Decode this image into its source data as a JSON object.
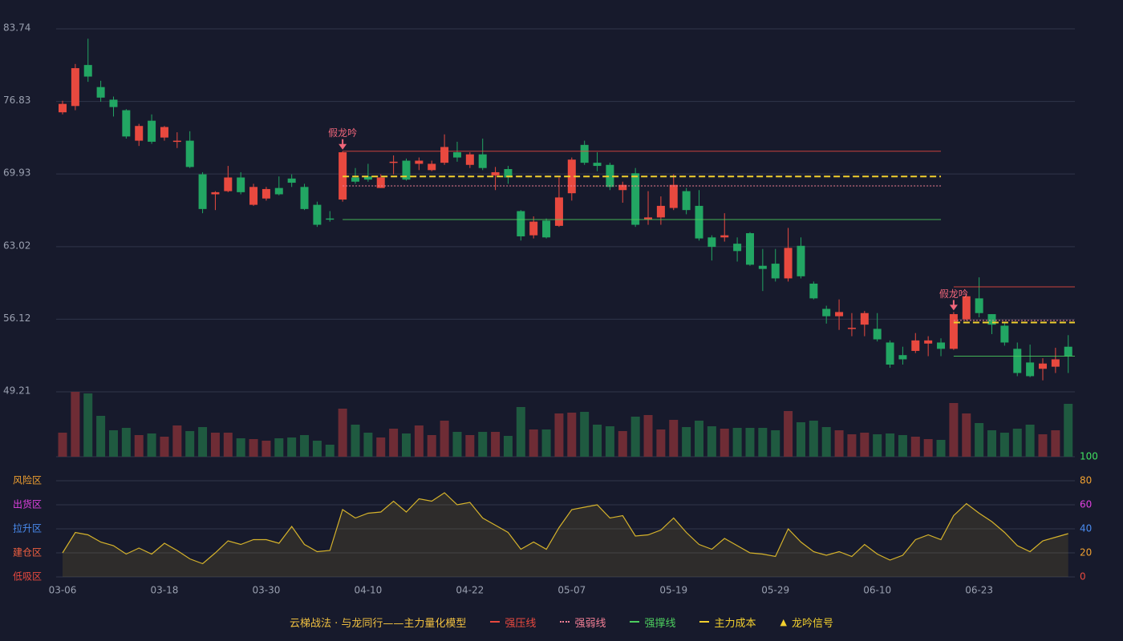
{
  "chart_data": {
    "type": "candlestick",
    "categories": [
      "03-06",
      null,
      null,
      null,
      null,
      null,
      null,
      null,
      "03-18",
      null,
      null,
      null,
      null,
      null,
      null,
      null,
      "03-30",
      null,
      null,
      null,
      null,
      null,
      null,
      null,
      "04-10",
      null,
      null,
      null,
      null,
      null,
      null,
      null,
      "04-22",
      null,
      null,
      null,
      null,
      null,
      null,
      null,
      "05-07",
      null,
      null,
      null,
      null,
      null,
      null,
      null,
      "05-19",
      null,
      null,
      null,
      null,
      null,
      null,
      null,
      "05-29",
      null,
      null,
      null,
      null,
      null,
      null,
      null,
      "06-10",
      null,
      null,
      null,
      null,
      null,
      null,
      null,
      "06-23",
      null,
      null,
      null,
      null,
      null,
      null,
      null
    ],
    "open": [
      75.8,
      76.4,
      80.3,
      78.2,
      77.0,
      76.0,
      73.1,
      75.0,
      73.4,
      73.0,
      73.1,
      69.9,
      68.0,
      68.3,
      69.6,
      67.0,
      67.6,
      68.6,
      69.5,
      68.7,
      67.0,
      65.7,
      67.5,
      69.6,
      69.7,
      68.6,
      71.0,
      71.2,
      70.9,
      70.3,
      71.0,
      72.0,
      70.8,
      71.8,
      69.8,
      70.4,
      66.4,
      64.1,
      65.5,
      65.0,
      68.1,
      72.7,
      71.0,
      70.8,
      68.4,
      70.0,
      65.6,
      65.8,
      66.7,
      68.3,
      66.9,
      63.9,
      63.9,
      63.3,
      64.3,
      61.2,
      61.4,
      60.0,
      63.1,
      59.5,
      57.1,
      56.4,
      55.2,
      55.6,
      55.2,
      53.9,
      52.7,
      53.1,
      53.8,
      53.9,
      53.3,
      56.1,
      58.1,
      56.6,
      55.5,
      53.3,
      52.0,
      51.4,
      51.6,
      53.5
    ],
    "high": [
      76.9,
      80.4,
      82.8,
      78.8,
      77.3,
      76.1,
      74.7,
      75.6,
      74.5,
      73.9,
      74.0,
      70.1,
      68.3,
      70.7,
      70.1,
      69.0,
      68.7,
      69.7,
      69.9,
      69.0,
      67.3,
      66.4,
      72.1,
      70.5,
      70.9,
      69.9,
      71.7,
      71.4,
      71.5,
      71.2,
      73.7,
      73.0,
      72.0,
      73.3,
      70.6,
      70.7,
      66.5,
      65.9,
      65.7,
      69.6,
      71.5,
      73.1,
      72.0,
      71.0,
      69.2,
      70.5,
      68.3,
      67.8,
      69.9,
      68.6,
      68.4,
      64.1,
      66.2,
      63.9,
      64.4,
      62.8,
      62.8,
      64.8,
      63.9,
      59.7,
      57.4,
      58.0,
      56.7,
      56.9,
      56.7,
      54.1,
      53.5,
      54.8,
      54.5,
      54.3,
      56.8,
      58.6,
      60.1,
      56.6,
      55.8,
      53.9,
      53.7,
      52.4,
      53.4,
      54.6
    ],
    "low": [
      75.6,
      76.0,
      78.7,
      76.8,
      75.4,
      73.3,
      72.6,
      72.8,
      73.1,
      72.4,
      70.5,
      66.2,
      66.5,
      68.2,
      68.0,
      66.9,
      67.4,
      67.9,
      68.7,
      66.5,
      64.9,
      65.4,
      67.3,
      69.0,
      69.2,
      68.6,
      69.9,
      69.3,
      70.3,
      70.2,
      70.8,
      71.1,
      70.5,
      70.3,
      68.4,
      69.0,
      63.6,
      63.8,
      63.8,
      64.9,
      67.4,
      70.8,
      70.2,
      68.4,
      67.2,
      64.9,
      65.1,
      65.1,
      66.5,
      66.1,
      63.6,
      61.7,
      63.5,
      61.6,
      61.2,
      58.8,
      59.7,
      59.7,
      60.0,
      58.0,
      55.7,
      55.1,
      54.5,
      54.5,
      54.0,
      51.5,
      51.8,
      52.9,
      52.6,
      52.6,
      53.2,
      56.0,
      56.3,
      54.7,
      53.6,
      50.7,
      50.6,
      50.3,
      51.0,
      51.0
    ],
    "close": [
      76.6,
      80.0,
      79.2,
      77.2,
      76.3,
      73.5,
      74.5,
      73.0,
      74.4,
      73.1,
      70.6,
      66.6,
      68.2,
      69.6,
      68.2,
      68.7,
      68.5,
      68.0,
      69.1,
      66.6,
      65.1,
      65.6,
      72.0,
      69.2,
      69.4,
      69.6,
      71.1,
      69.4,
      71.2,
      70.9,
      72.5,
      71.5,
      71.8,
      70.5,
      70.1,
      69.6,
      64.0,
      65.4,
      63.9,
      67.7,
      71.3,
      71.0,
      70.7,
      68.7,
      68.9,
      65.1,
      65.8,
      66.9,
      68.9,
      66.5,
      63.8,
      63.0,
      64.1,
      62.6,
      61.3,
      60.9,
      60.0,
      62.9,
      60.2,
      58.1,
      56.4,
      56.8,
      55.3,
      56.7,
      54.2,
      51.8,
      52.3,
      54.1,
      54.1,
      53.3,
      56.6,
      58.3,
      56.7,
      55.6,
      53.9,
      51.0,
      50.7,
      51.9,
      52.3,
      52.6
    ],
    "volume": [
      30,
      81,
      79,
      51,
      33,
      36,
      27,
      29,
      25,
      39,
      32,
      37,
      30,
      30,
      23,
      22,
      20,
      23,
      24,
      27,
      20,
      15,
      60,
      40,
      30,
      24,
      35,
      29,
      39,
      27,
      45,
      31,
      27,
      31,
      31,
      26,
      62,
      34,
      34,
      54,
      55,
      56,
      40,
      38,
      32,
      50,
      52,
      34,
      46,
      37,
      45,
      38,
      35,
      36,
      36,
      36,
      33,
      57,
      43,
      45,
      37,
      33,
      28,
      30,
      28,
      29,
      27,
      25,
      22,
      21,
      67,
      54,
      42,
      33,
      30,
      35,
      40,
      28,
      33,
      66
    ],
    "ylim": [
      49.21,
      83.74
    ],
    "yticks": [
      49.21,
      56.12,
      63.02,
      69.93,
      76.83,
      83.74
    ],
    "grid": true,
    "colors": {
      "up": "#e8493f",
      "down": "#22a663",
      "up_volume": "#6e2c35",
      "down_volume": "#1f5a40"
    },
    "levels": [
      {
        "name": "强压线",
        "color": "#e8493f",
        "style": "solid",
        "segments": [
          {
            "start": 22,
            "end": 69,
            "value": 72.1
          },
          {
            "start": 70,
            "end": 79,
            "value": 59.2
          }
        ]
      },
      {
        "name": "强弱线",
        "color": "#f27f95",
        "style": "dotted",
        "segments": [
          {
            "start": 22,
            "end": 69,
            "value": 68.8
          },
          {
            "start": 70,
            "end": 79,
            "value": 56.0
          }
        ]
      },
      {
        "name": "强撑线",
        "color": "#4ccd5e",
        "style": "solid",
        "segments": [
          {
            "start": 22,
            "end": 69,
            "value": 65.6
          },
          {
            "start": 70,
            "end": 79,
            "value": 52.6
          }
        ]
      },
      {
        "name": "主力成本",
        "color": "#f2cf2e",
        "style": "dashed",
        "segments": [
          {
            "start": 22,
            "end": 69,
            "value": 69.7
          },
          {
            "start": 70,
            "end": 79,
            "value": 55.8
          }
        ]
      }
    ],
    "signals": {
      "name": "龙吟信号",
      "label": "假龙吟",
      "color": "#f0667a",
      "legend_color": "#f2cf2e",
      "points": [
        22,
        70
      ]
    },
    "indicator": {
      "values": [
        20,
        37,
        35,
        29,
        26,
        19,
        24,
        19,
        28,
        22,
        15,
        11,
        20,
        30,
        27,
        31,
        31,
        28,
        42,
        27,
        21,
        22,
        56,
        49,
        53,
        54,
        63,
        54,
        65,
        63,
        70,
        60,
        62,
        49,
        43,
        37,
        23,
        29,
        23,
        41,
        56,
        58,
        60,
        49,
        51,
        34,
        35,
        39,
        49,
        37,
        27,
        23,
        32,
        26,
        20,
        19,
        17,
        40,
        29,
        21,
        18,
        21,
        17,
        27,
        19,
        14,
        18,
        31,
        35,
        31,
        51,
        61,
        53,
        46,
        37,
        26,
        21,
        30,
        33,
        36
      ],
      "color": "#d6b32b",
      "ylim": [
        0,
        100
      ],
      "yticks": [
        0,
        20,
        40,
        60,
        80,
        100
      ],
      "tick_colors": [
        "#e8493f",
        "#f0a030",
        "#4a8cf0",
        "#e040e0",
        "#f0a030",
        "#40e060"
      ],
      "zones": [
        {
          "label": "风险区",
          "value": 80,
          "color": "#f0a030"
        },
        {
          "label": "出货区",
          "value": 60,
          "color": "#e040e0"
        },
        {
          "label": "拉升区",
          "value": 40,
          "color": "#4a8cf0"
        },
        {
          "label": "建仓区",
          "value": 20,
          "color": "#f06040"
        },
        {
          "label": "低吸区",
          "value": 0,
          "color": "#e8493f"
        }
      ]
    },
    "legend_title": "云梯战法 · 与龙同行——主力量化模型",
    "legend_title_color": "#f0c040"
  }
}
